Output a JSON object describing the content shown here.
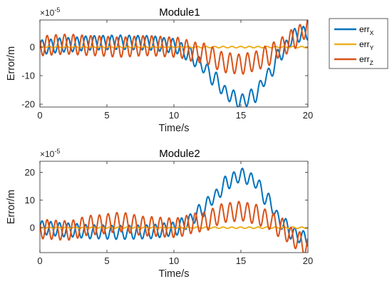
{
  "chart_data": [
    {
      "type": "line",
      "title": "Module1",
      "xlabel": "Time/s",
      "ylabel": "Error/m",
      "exponent_label": "×10",
      "exponent_power": "-5",
      "xlim": [
        0,
        20
      ],
      "ylim": [
        -21,
        9.5
      ],
      "xticks": [
        "0",
        "5",
        "10",
        "15",
        "20"
      ],
      "yticks": [
        "0",
        "-10",
        "-20"
      ],
      "grid": false,
      "series": [
        {
          "name": "err_X",
          "color": "#0072BD",
          "x": [
            0,
            2,
            4,
            6,
            8,
            10,
            11,
            12,
            13,
            14,
            15,
            16,
            17,
            18,
            19,
            20
          ],
          "y": [
            0,
            0.8,
            1.5,
            1.7,
            1.5,
            0.5,
            -2,
            -6,
            -11,
            -16.5,
            -19,
            -17,
            -10,
            -2,
            4,
            5
          ],
          "osc_amplitude": 2.5,
          "osc_period": 0.65
        },
        {
          "name": "err_Y",
          "color": "#EDB120",
          "x": [
            0,
            5,
            10,
            15,
            20
          ],
          "y": [
            0,
            0,
            0,
            0,
            0
          ],
          "osc_amplitude": 0.25,
          "osc_period": 0.65
        },
        {
          "name": "err_Z",
          "color": "#D95319",
          "x": [
            0,
            2,
            4,
            6,
            8,
            10,
            12,
            14,
            15,
            16,
            17,
            18,
            19,
            20
          ],
          "y": [
            0.5,
            1,
            0.5,
            0,
            0.5,
            0,
            -2,
            -5.5,
            -6,
            -5,
            -3,
            0,
            3,
            7
          ],
          "osc_amplitude": 3.5,
          "osc_period": 0.65
        }
      ]
    },
    {
      "type": "line",
      "title": "Module2",
      "xlabel": "Time/s",
      "ylabel": "Error/m",
      "exponent_label": "×10",
      "exponent_power": "-5",
      "xlim": [
        0,
        20
      ],
      "ylim": [
        -9,
        24
      ],
      "xticks": [
        "0",
        "5",
        "10",
        "15",
        "20"
      ],
      "yticks": [
        "20",
        "10",
        "0"
      ],
      "grid": false,
      "series": [
        {
          "name": "err_X",
          "color": "#0072BD",
          "x": [
            0,
            2,
            4,
            6,
            8,
            10,
            11,
            12,
            13,
            14,
            15,
            16,
            17,
            18,
            19,
            20
          ],
          "y": [
            0,
            -0.8,
            -1.5,
            -1.7,
            -1.5,
            -0.5,
            2,
            6,
            11,
            16.5,
            19,
            17,
            10,
            2,
            -2.5,
            -4
          ],
          "osc_amplitude": 2.5,
          "osc_period": 0.65
        },
        {
          "name": "err_Y",
          "color": "#EDB120",
          "x": [
            0,
            5,
            10,
            15,
            20
          ],
          "y": [
            0,
            0,
            0,
            0,
            0
          ],
          "osc_amplitude": 0.25,
          "osc_period": 0.65
        },
        {
          "name": "err_Z",
          "color": "#D95319",
          "x": [
            0,
            2,
            4,
            6,
            8,
            10,
            12,
            14,
            15,
            16,
            17,
            18,
            19,
            20
          ],
          "y": [
            -0.5,
            -1,
            1,
            2,
            0.5,
            0,
            2,
            5.5,
            6,
            5,
            3,
            0,
            -4,
            -7
          ],
          "osc_amplitude": 3.5,
          "osc_period": 0.65
        }
      ]
    }
  ],
  "legend": {
    "placement": "outside-top-right",
    "entries": [
      {
        "base": "err",
        "sub": "X",
        "color": "#0072BD"
      },
      {
        "base": "err",
        "sub": "Y",
        "color": "#EDB120"
      },
      {
        "base": "err",
        "sub": "Z",
        "color": "#D95319"
      }
    ]
  }
}
